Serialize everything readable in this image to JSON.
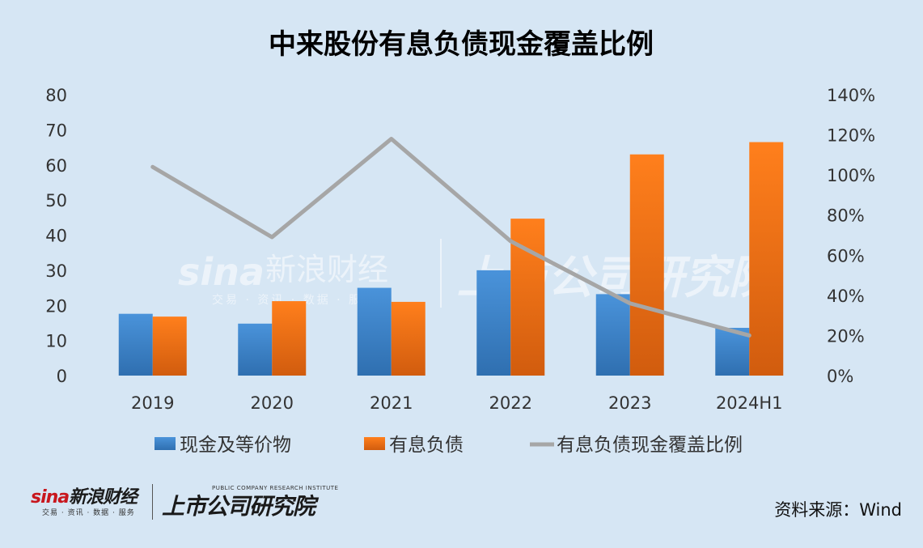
{
  "chart_data": {
    "type": "bar",
    "title": "中来股份有息负债现金覆盖比例",
    "categories": [
      "2019",
      "2020",
      "2021",
      "2022",
      "2023",
      "2024H1"
    ],
    "series": [
      {
        "name": "现金及等价物",
        "type": "bar",
        "axis": "left",
        "color": "#3f86cf",
        "values": [
          17.6,
          14.8,
          25,
          30,
          23.2,
          13.6
        ]
      },
      {
        "name": "有息负债",
        "type": "bar",
        "axis": "left",
        "color": "#f07b1e",
        "values": [
          16.8,
          21.2,
          21,
          44.7,
          63,
          66.5
        ]
      },
      {
        "name": "有息负债现金覆盖比例",
        "type": "line",
        "axis": "right",
        "color": "#a6a6a6",
        "values": [
          1.04,
          0.69,
          1.18,
          0.67,
          0.36,
          0.2
        ]
      }
    ],
    "yaxis_left": {
      "ylim": [
        0,
        80
      ],
      "ticks": [
        "0",
        "10",
        "20",
        "30",
        "40",
        "50",
        "60",
        "70",
        "80"
      ]
    },
    "yaxis_right": {
      "ylim": [
        0,
        1.4
      ],
      "ticks": [
        "0%",
        "20%",
        "40%",
        "60%",
        "80%",
        "100%",
        "120%",
        "140%"
      ]
    },
    "grid": false,
    "legend": "bottom"
  },
  "watermark": {
    "sina": "sina",
    "sina_cn": "新浪财经",
    "sina_sub": "交易 · 资讯 · 数据 · 服务",
    "institute": "上市公司研究院"
  },
  "footer": {
    "sina_word": "sina",
    "sina_cn": "新浪财经",
    "sina_sub": "交易 · 资讯 · 数据 · 服务",
    "institute_en": "PUBLIC COMPANY RESEARCH INSTITUTE",
    "institute": "上市公司研究院",
    "source": "资料来源：Wind"
  }
}
